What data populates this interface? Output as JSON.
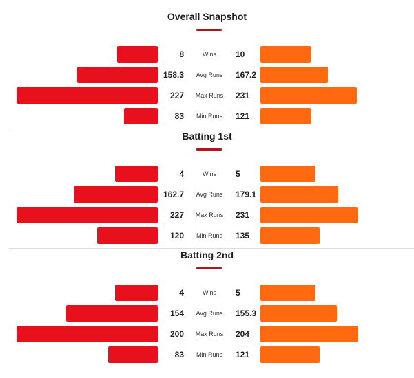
{
  "sections": [
    {
      "title": "Overall Snapshot",
      "rows": [
        {
          "label": "Wins",
          "left": "8",
          "right": "10",
          "left_frac": 0.2883,
          "right_frac": 0.3518
        },
        {
          "label": "Avg Runs",
          "left": "158.3",
          "right": "167.2",
          "left_frac": 0.5706,
          "right_frac": 0.4724
        },
        {
          "label": "Max Runs",
          "left": "227",
          "right": "231",
          "left_frac": 1.0,
          "right_frac": 0.6734
        },
        {
          "label": "Min Runs",
          "left": "83",
          "right": "121",
          "left_frac": 0.2393,
          "right_frac": 0.3518
        }
      ]
    },
    {
      "title": "Batting 1st",
      "rows": [
        {
          "label": "Wins",
          "left": "4",
          "right": "5",
          "left_frac": 0.3006,
          "right_frac": 0.3869
        },
        {
          "label": "Avg Runs",
          "left": "162.7",
          "right": "179.1",
          "left_frac": 0.5951,
          "right_frac": 0.5427
        },
        {
          "label": "Max Runs",
          "left": "227",
          "right": "231",
          "left_frac": 1.0,
          "right_frac": 0.6784
        },
        {
          "label": "Min Runs",
          "left": "120",
          "right": "135",
          "left_frac": 0.4294,
          "right_frac": 0.4121
        }
      ]
    },
    {
      "title": "Batting 2nd",
      "rows": [
        {
          "label": "Wins",
          "left": "4",
          "right": "5",
          "left_frac": 0.3006,
          "right_frac": 0.3869
        },
        {
          "label": "Avg Runs",
          "left": "154",
          "right": "155.3",
          "left_frac": 0.6503,
          "right_frac": 0.5327
        },
        {
          "label": "Max Runs",
          "left": "200",
          "right": "204",
          "left_frac": 1.0,
          "right_frac": 0.6784
        },
        {
          "label": "Min Runs",
          "left": "83",
          "right": "121",
          "left_frac": 0.3497,
          "right_frac": 0.4121
        }
      ]
    }
  ],
  "colors": {
    "left_team": "#e8101c",
    "right_team": "#ff6a10",
    "accent": "#b5121b"
  }
}
